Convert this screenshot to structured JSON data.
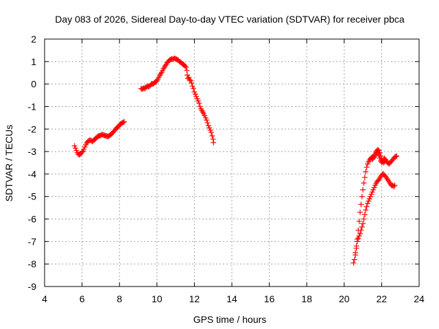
{
  "chart_data": {
    "type": "scatter",
    "title": "Day 083 of 2026, Sidereal Day-to-day VTEC variation (SDTVAR) for receiver pbca",
    "xlabel": "GPS time / hours",
    "ylabel": "SDTVAR / TECUs",
    "xlim": [
      4,
      24
    ],
    "ylim": [
      -9,
      2
    ],
    "xticks": [
      "4",
      "6",
      "8",
      "10",
      "12",
      "14",
      "16",
      "18",
      "20",
      "22",
      "24"
    ],
    "yticks": [
      "2",
      "1",
      "0",
      "-1",
      "-2",
      "-3",
      "-4",
      "-5",
      "-6",
      "-7",
      "-8",
      "-9"
    ],
    "grid": true,
    "marker": "plus",
    "color": "#ff0000",
    "series": [
      {
        "points": [
          [
            5.6,
            -2.75
          ],
          [
            5.65,
            -2.85
          ],
          [
            5.7,
            -2.95
          ],
          [
            5.75,
            -3.05
          ],
          [
            5.8,
            -3.12
          ],
          [
            5.85,
            -3.15
          ],
          [
            5.9,
            -3.12
          ],
          [
            5.95,
            -3.08
          ],
          [
            6.0,
            -3.02
          ],
          [
            6.05,
            -2.98
          ],
          [
            6.1,
            -2.9
          ],
          [
            6.15,
            -2.8
          ],
          [
            6.2,
            -2.7
          ],
          [
            6.25,
            -2.62
          ],
          [
            6.3,
            -2.56
          ],
          [
            6.35,
            -2.52
          ],
          [
            6.4,
            -2.5
          ],
          [
            6.45,
            -2.5
          ],
          [
            6.5,
            -2.52
          ],
          [
            6.55,
            -2.55
          ],
          [
            6.6,
            -2.52
          ],
          [
            6.65,
            -2.48
          ],
          [
            6.7,
            -2.44
          ],
          [
            6.75,
            -2.4
          ],
          [
            6.8,
            -2.36
          ],
          [
            6.85,
            -2.32
          ],
          [
            6.9,
            -2.3
          ],
          [
            6.95,
            -2.3
          ],
          [
            7.0,
            -2.28
          ],
          [
            7.05,
            -2.25
          ],
          [
            7.1,
            -2.25
          ],
          [
            7.15,
            -2.27
          ],
          [
            7.2,
            -2.28
          ],
          [
            7.25,
            -2.3
          ],
          [
            7.3,
            -2.3
          ],
          [
            7.35,
            -2.32
          ],
          [
            7.4,
            -2.33
          ],
          [
            7.45,
            -2.3
          ],
          [
            7.5,
            -2.27
          ],
          [
            7.55,
            -2.23
          ],
          [
            7.6,
            -2.2
          ],
          [
            7.65,
            -2.15
          ],
          [
            7.7,
            -2.1
          ],
          [
            7.75,
            -2.05
          ],
          [
            7.8,
            -2.0
          ],
          [
            7.85,
            -1.95
          ],
          [
            7.9,
            -1.92
          ],
          [
            7.95,
            -1.88
          ],
          [
            8.0,
            -1.82
          ],
          [
            8.05,
            -1.78
          ],
          [
            8.1,
            -1.75
          ],
          [
            8.15,
            -1.72
          ],
          [
            8.2,
            -1.7
          ],
          [
            8.25,
            -1.68
          ]
        ]
      },
      {
        "points": [
          [
            9.15,
            -0.2
          ],
          [
            9.2,
            -0.22
          ],
          [
            9.25,
            -0.2
          ],
          [
            9.3,
            -0.18
          ],
          [
            9.35,
            -0.2
          ],
          [
            9.4,
            -0.15
          ],
          [
            9.45,
            -0.12
          ],
          [
            9.5,
            -0.08
          ],
          [
            9.55,
            -0.12
          ],
          [
            9.6,
            -0.1
          ],
          [
            9.65,
            -0.05
          ],
          [
            9.7,
            0.0
          ],
          [
            9.75,
            0.02
          ],
          [
            9.8,
            0.0
          ],
          [
            9.85,
            0.05
          ],
          [
            9.9,
            0.08
          ],
          [
            9.95,
            0.1
          ],
          [
            10.0,
            0.15
          ],
          [
            10.05,
            0.22
          ],
          [
            10.1,
            0.3
          ],
          [
            10.15,
            0.38
          ],
          [
            10.2,
            0.45
          ],
          [
            10.25,
            0.52
          ],
          [
            10.3,
            0.6
          ],
          [
            10.35,
            0.68
          ],
          [
            10.4,
            0.75
          ],
          [
            10.45,
            0.82
          ],
          [
            10.5,
            0.88
          ],
          [
            10.55,
            0.95
          ],
          [
            10.6,
            1.0
          ],
          [
            10.65,
            1.05
          ],
          [
            10.7,
            1.08
          ],
          [
            10.75,
            1.1
          ],
          [
            10.8,
            1.12
          ],
          [
            10.85,
            1.1
          ],
          [
            10.9,
            1.12
          ],
          [
            10.95,
            1.15
          ],
          [
            11.0,
            1.12
          ],
          [
            11.05,
            1.1
          ],
          [
            11.1,
            1.08
          ],
          [
            11.15,
            1.05
          ],
          [
            11.2,
            1.0
          ],
          [
            11.25,
            0.98
          ],
          [
            11.3,
            0.95
          ],
          [
            11.35,
            0.9
          ],
          [
            11.4,
            0.88
          ],
          [
            11.45,
            0.85
          ],
          [
            11.5,
            0.8
          ],
          [
            11.55,
            0.75
          ],
          [
            11.6,
            0.6
          ],
          [
            11.62,
            0.4
          ],
          [
            11.65,
            0.25
          ],
          [
            11.7,
            0.3
          ],
          [
            11.75,
            0.2
          ],
          [
            11.8,
            0.15
          ],
          [
            11.85,
            0.05
          ],
          [
            11.9,
            -0.1
          ],
          [
            11.95,
            -0.2
          ],
          [
            12.0,
            -0.35
          ],
          [
            12.05,
            -0.45
          ],
          [
            12.1,
            -0.55
          ],
          [
            12.15,
            -0.65
          ],
          [
            12.2,
            -0.75
          ],
          [
            12.25,
            -0.85
          ],
          [
            12.3,
            -1.0
          ],
          [
            12.35,
            -1.1
          ],
          [
            12.4,
            -1.18
          ],
          [
            12.45,
            -1.25
          ],
          [
            12.5,
            -1.32
          ],
          [
            12.55,
            -1.4
          ],
          [
            12.6,
            -1.5
          ],
          [
            12.65,
            -1.6
          ],
          [
            12.7,
            -1.72
          ],
          [
            12.75,
            -1.85
          ],
          [
            12.8,
            -1.95
          ],
          [
            12.85,
            -2.05
          ],
          [
            12.9,
            -2.15
          ],
          [
            12.95,
            -2.3
          ],
          [
            13.0,
            -2.45
          ],
          [
            13.02,
            -2.6
          ]
        ]
      },
      {
        "points": [
          [
            20.5,
            -7.95
          ],
          [
            20.55,
            -7.8
          ],
          [
            20.6,
            -7.5
          ],
          [
            20.65,
            -7.2
          ],
          [
            20.7,
            -7.0
          ],
          [
            20.75,
            -6.85
          ],
          [
            20.8,
            -6.75
          ],
          [
            20.85,
            -6.65
          ],
          [
            20.9,
            -6.5
          ],
          [
            20.95,
            -6.35
          ],
          [
            21.0,
            -6.2
          ],
          [
            21.05,
            -6.0
          ],
          [
            21.1,
            -5.8
          ],
          [
            21.15,
            -5.6
          ],
          [
            21.2,
            -5.45
          ],
          [
            21.25,
            -5.3
          ],
          [
            21.3,
            -5.2
          ],
          [
            21.35,
            -5.1
          ],
          [
            21.4,
            -5.0
          ],
          [
            21.45,
            -4.9
          ],
          [
            21.5,
            -4.8
          ],
          [
            21.55,
            -4.7
          ],
          [
            21.6,
            -4.6
          ],
          [
            21.65,
            -4.5
          ],
          [
            21.7,
            -4.42
          ],
          [
            21.75,
            -4.35
          ],
          [
            21.8,
            -4.3
          ],
          [
            21.85,
            -4.25
          ],
          [
            21.9,
            -4.18
          ],
          [
            21.95,
            -4.12
          ],
          [
            22.0,
            -4.05
          ],
          [
            22.05,
            -4.0
          ],
          [
            22.1,
            -4.0
          ],
          [
            22.15,
            -4.05
          ],
          [
            22.2,
            -4.1
          ],
          [
            22.25,
            -4.15
          ],
          [
            22.3,
            -4.22
          ],
          [
            22.35,
            -4.28
          ],
          [
            22.4,
            -4.35
          ],
          [
            22.45,
            -4.42
          ],
          [
            22.5,
            -4.48
          ],
          [
            22.55,
            -4.52
          ],
          [
            22.6,
            -4.5
          ],
          [
            22.65,
            -4.55
          ],
          [
            22.7,
            -4.5
          ]
        ]
      },
      {
        "points": [
          [
            20.6,
            -7.6
          ],
          [
            20.65,
            -7.3
          ],
          [
            20.7,
            -6.9
          ],
          [
            20.75,
            -6.5
          ],
          [
            20.8,
            -6.1
          ],
          [
            20.85,
            -5.7
          ],
          [
            20.9,
            -5.35
          ],
          [
            20.95,
            -5.0
          ],
          [
            21.0,
            -4.7
          ],
          [
            21.05,
            -4.4
          ],
          [
            21.1,
            -4.15
          ],
          [
            21.15,
            -3.9
          ],
          [
            21.2,
            -3.7
          ],
          [
            21.25,
            -3.55
          ],
          [
            21.3,
            -3.45
          ],
          [
            21.35,
            -3.38
          ],
          [
            21.4,
            -3.32
          ],
          [
            21.45,
            -3.28
          ],
          [
            21.5,
            -3.25
          ],
          [
            21.55,
            -3.22
          ],
          [
            21.6,
            -3.2
          ],
          [
            21.65,
            -3.12
          ],
          [
            21.7,
            -3.05
          ],
          [
            21.75,
            -3.0
          ],
          [
            21.8,
            -3.05
          ],
          [
            21.85,
            -3.15
          ],
          [
            21.9,
            -3.3
          ],
          [
            21.95,
            -3.42
          ],
          [
            22.0,
            -3.48
          ],
          [
            22.05,
            -3.4
          ],
          [
            22.1,
            -3.35
          ],
          [
            22.15,
            -3.3
          ],
          [
            22.2,
            -3.35
          ],
          [
            22.25,
            -3.42
          ],
          [
            22.3,
            -3.48
          ],
          [
            22.35,
            -3.52
          ],
          [
            22.4,
            -3.55
          ],
          [
            22.45,
            -3.5
          ],
          [
            22.5,
            -3.45
          ],
          [
            22.55,
            -3.4
          ],
          [
            22.6,
            -3.35
          ],
          [
            22.65,
            -3.3
          ],
          [
            22.7,
            -3.25
          ],
          [
            22.75,
            -3.22
          ],
          [
            22.8,
            -3.2
          ]
        ]
      },
      {
        "points": [
          [
            21.5,
            -3.35
          ],
          [
            21.55,
            -3.3
          ],
          [
            21.6,
            -3.25
          ],
          [
            21.65,
            -3.2
          ],
          [
            21.7,
            -3.0
          ],
          [
            21.75,
            -2.95
          ],
          [
            21.8,
            -2.92
          ],
          [
            21.85,
            -2.95
          ],
          [
            21.9,
            -3.05
          ],
          [
            21.95,
            -3.2
          ],
          [
            22.0,
            -3.35
          ],
          [
            22.05,
            -3.45
          ],
          [
            22.1,
            -3.5
          ],
          [
            22.15,
            -3.45
          ],
          [
            22.2,
            -3.4
          ]
        ]
      }
    ]
  }
}
